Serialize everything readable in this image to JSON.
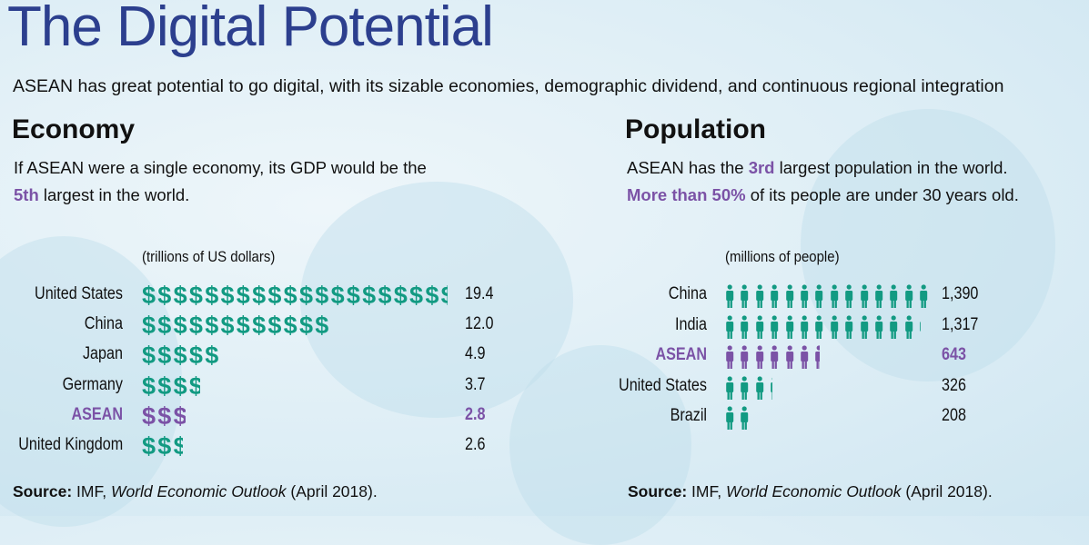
{
  "header": {
    "title": "The Digital Potential",
    "subtitle": "ASEAN has great potential to go digital, with its sizable economies, demographic dividend, and continuous regional integration"
  },
  "economy": {
    "heading": "Economy",
    "text_a": "If ASEAN were a single economy, its GDP would be the",
    "text_hl": "5th",
    "text_b": " largest in the world.",
    "source_label": "Source:",
    "source_a": " IMF, ",
    "source_italic": "World Economic Outlook",
    "source_b": " (April 2018)."
  },
  "population": {
    "heading": "Population",
    "text_a": "ASEAN has the ",
    "text_hl1": "3rd",
    "text_b": " largest population in the world.",
    "text_hl2": "More than 50%",
    "text_c": " of its people are under 30 years old.",
    "source_label": "Source:",
    "source_a": " IMF, ",
    "source_italic": "World Economic Outlook",
    "source_b": " (April 2018)."
  },
  "colors": {
    "teal": "#129a82",
    "purple": "#7b52a6",
    "title": "#2c3f8e"
  },
  "chart_data": [
    {
      "type": "bar",
      "subtype": "pictograph",
      "icon": "dollar-sign",
      "unit_per_icon": 1,
      "title": "(trillions of US dollars)",
      "categories": [
        "United States",
        "China",
        "Japan",
        "Germany",
        "ASEAN",
        "United Kingdom"
      ],
      "values": [
        19.4,
        12.0,
        4.9,
        3.7,
        2.8,
        2.6
      ],
      "labels": [
        "19.4",
        "12.0",
        "4.9",
        "3.7",
        "2.8",
        "2.6"
      ],
      "highlight": "ASEAN"
    },
    {
      "type": "bar",
      "subtype": "pictograph",
      "icon": "person",
      "unit_per_icon": 100,
      "title": "(millions of people)",
      "categories": [
        "China",
        "India",
        "ASEAN",
        "United States",
        "Brazil"
      ],
      "values": [
        1390,
        1317,
        643,
        326,
        208
      ],
      "labels": [
        "1,390",
        "1,317",
        "643",
        "326",
        "208"
      ],
      "highlight": "ASEAN"
    }
  ]
}
